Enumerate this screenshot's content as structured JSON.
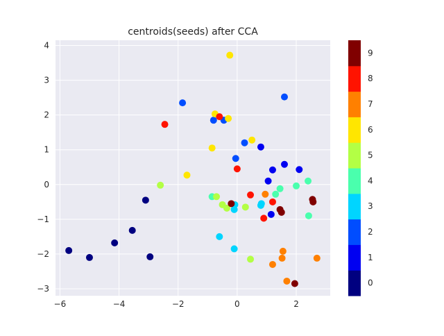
{
  "chart_data": {
    "type": "scatter",
    "title": "centroids(seeds) after CCA",
    "xlabel": "",
    "ylabel": "",
    "xlim": [
      -6.15,
      3.15
    ],
    "ylim": [
      -3.2,
      4.15
    ],
    "xticks": [
      -6,
      -4,
      -2,
      0,
      2
    ],
    "yticks": [
      -3,
      -2,
      -1,
      0,
      1,
      2,
      3,
      4
    ],
    "grid": true,
    "colorbar": {
      "labels": [
        "0",
        "1",
        "2",
        "3",
        "4",
        "5",
        "6",
        "7",
        "8",
        "9"
      ],
      "colors": [
        "#000080",
        "#0000f1",
        "#004dff",
        "#00d5ff",
        "#4affad",
        "#b3ff45",
        "#ffe600",
        "#ff8000",
        "#ff1300",
        "#800000"
      ]
    },
    "points": [
      {
        "x": -5.7,
        "y": -1.9,
        "c": 0
      },
      {
        "x": -5.0,
        "y": -2.1,
        "c": 0
      },
      {
        "x": -4.15,
        "y": -1.68,
        "c": 0
      },
      {
        "x": -3.55,
        "y": -1.32,
        "c": 0
      },
      {
        "x": -3.1,
        "y": -0.45,
        "c": 0
      },
      {
        "x": -2.95,
        "y": -2.08,
        "c": 0
      },
      {
        "x": 1.05,
        "y": 0.1,
        "c": 1
      },
      {
        "x": 1.2,
        "y": 0.42,
        "c": 1
      },
      {
        "x": 1.6,
        "y": 0.58,
        "c": 1
      },
      {
        "x": 2.1,
        "y": 0.43,
        "c": 1
      },
      {
        "x": 0.8,
        "y": 1.08,
        "c": 1
      },
      {
        "x": 1.15,
        "y": -0.86,
        "c": 1
      },
      {
        "x": -1.85,
        "y": 2.35,
        "c": 2
      },
      {
        "x": -0.8,
        "y": 1.85,
        "c": 2
      },
      {
        "x": -0.45,
        "y": 1.85,
        "c": 2
      },
      {
        "x": 0.25,
        "y": 1.2,
        "c": 2
      },
      {
        "x": -0.05,
        "y": 0.75,
        "c": 2
      },
      {
        "x": 1.6,
        "y": 2.52,
        "c": 2
      },
      {
        "x": -0.6,
        "y": -1.5,
        "c": 3
      },
      {
        "x": -0.1,
        "y": -1.85,
        "c": 3
      },
      {
        "x": -0.1,
        "y": -0.72,
        "c": 3
      },
      {
        "x": -0.08,
        "y": -0.58,
        "c": 3
      },
      {
        "x": 0.82,
        "y": -0.55,
        "c": 3
      },
      {
        "x": 0.8,
        "y": -0.6,
        "c": 3
      },
      {
        "x": -0.85,
        "y": -0.35,
        "c": 4
      },
      {
        "x": 1.3,
        "y": -0.28,
        "c": 4
      },
      {
        "x": 1.45,
        "y": -0.12,
        "c": 4
      },
      {
        "x": 2.0,
        "y": -0.04,
        "c": 4
      },
      {
        "x": 2.4,
        "y": 0.1,
        "c": 4
      },
      {
        "x": 2.42,
        "y": -0.9,
        "c": 4
      },
      {
        "x": -2.6,
        "y": -0.02,
        "c": 5
      },
      {
        "x": -0.7,
        "y": -0.35,
        "c": 5
      },
      {
        "x": -0.5,
        "y": -0.58,
        "c": 5
      },
      {
        "x": -0.35,
        "y": -0.68,
        "c": 5
      },
      {
        "x": 0.28,
        "y": -0.65,
        "c": 5
      },
      {
        "x": 0.45,
        "y": -2.15,
        "c": 5
      },
      {
        "x": -0.25,
        "y": 3.72,
        "c": 6
      },
      {
        "x": -0.75,
        "y": 2.03,
        "c": 6
      },
      {
        "x": -0.3,
        "y": 1.9,
        "c": 6
      },
      {
        "x": -0.85,
        "y": 1.05,
        "c": 6
      },
      {
        "x": 0.5,
        "y": 1.28,
        "c": 6
      },
      {
        "x": -1.7,
        "y": 0.27,
        "c": 6
      },
      {
        "x": 0.95,
        "y": -0.28,
        "c": 7
      },
      {
        "x": 1.2,
        "y": -2.3,
        "c": 7
      },
      {
        "x": 1.55,
        "y": -1.92,
        "c": 7
      },
      {
        "x": 1.52,
        "y": -2.12,
        "c": 7
      },
      {
        "x": 1.68,
        "y": -2.78,
        "c": 7
      },
      {
        "x": 2.7,
        "y": -2.12,
        "c": 7
      },
      {
        "x": -2.45,
        "y": 1.73,
        "c": 8
      },
      {
        "x": -0.6,
        "y": 1.95,
        "c": 8
      },
      {
        "x": 0.0,
        "y": 0.45,
        "c": 8
      },
      {
        "x": 0.45,
        "y": -0.3,
        "c": 8
      },
      {
        "x": 1.2,
        "y": -0.5,
        "c": 8
      },
      {
        "x": 0.9,
        "y": -0.97,
        "c": 8
      },
      {
        "x": -0.2,
        "y": -0.55,
        "c": 9
      },
      {
        "x": 1.45,
        "y": -0.72,
        "c": 9
      },
      {
        "x": 1.5,
        "y": -0.8,
        "c": 9
      },
      {
        "x": 2.55,
        "y": -0.43,
        "c": 9
      },
      {
        "x": 2.57,
        "y": -0.5,
        "c": 9
      },
      {
        "x": 1.95,
        "y": -2.85,
        "c": 9
      }
    ]
  }
}
